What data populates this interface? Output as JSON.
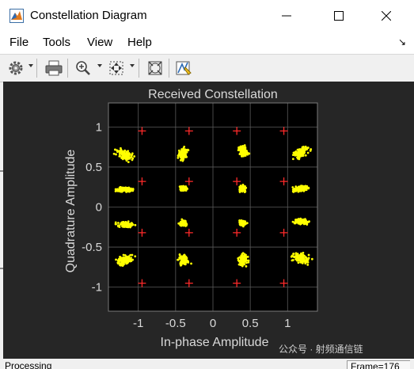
{
  "window": {
    "title": "Constellation Diagram",
    "controls": {
      "minimize": "minimize",
      "maximize": "maximize",
      "close": "close"
    }
  },
  "menu": {
    "items": [
      "File",
      "Tools",
      "View",
      "Help"
    ],
    "dock_glyph": "↘"
  },
  "toolbar": {
    "icons": [
      "gear-icon",
      "print-icon",
      "zoom-in-icon",
      "pan-fit-icon",
      "autoscale-icon",
      "highlight-signal-icon"
    ]
  },
  "status": {
    "left": "Processing",
    "frame": "Frame=176"
  },
  "watermark": "公众号 · 射频通信链",
  "colors": {
    "figure_bg": "#262626",
    "plot_bg": "#000000",
    "grid": "#5a5a5a",
    "text": "#d9d9d9",
    "received": "#ffff00",
    "reference": "#ff2a2a"
  },
  "chart_data": {
    "type": "scatter",
    "title": "Received Constellation",
    "xlabel": "In-phase Amplitude",
    "ylabel": "Quadrature Amplitude",
    "xlim": [
      -1.4,
      1.4
    ],
    "ylim": [
      -1.3,
      1.3
    ],
    "xticks": [
      -1,
      -0.5,
      0,
      0.5,
      1
    ],
    "yticks": [
      -1,
      -0.5,
      0,
      0.5,
      1
    ],
    "xtick_labels": [
      "-1",
      "-0.5",
      "0",
      "0.5",
      "1"
    ],
    "ytick_labels": [
      "-1",
      "-0.5",
      "0",
      "0.5",
      "1"
    ],
    "grid": true,
    "reference_points": [
      [
        -0.95,
        0.95
      ],
      [
        -0.32,
        0.95
      ],
      [
        0.32,
        0.95
      ],
      [
        0.95,
        0.95
      ],
      [
        -0.95,
        0.32
      ],
      [
        -0.32,
        0.32
      ],
      [
        0.32,
        0.32
      ],
      [
        0.95,
        0.32
      ],
      [
        -0.95,
        -0.32
      ],
      [
        -0.32,
        -0.32
      ],
      [
        0.32,
        -0.32
      ],
      [
        0.95,
        -0.32
      ],
      [
        -0.95,
        -0.95
      ],
      [
        -0.32,
        -0.95
      ],
      [
        0.32,
        -0.95
      ],
      [
        0.95,
        -0.95
      ]
    ],
    "received_clusters": [
      {
        "center": [
          -1.18,
          0.65
        ],
        "spread": [
          0.1,
          0.05
        ],
        "tilt": -0.3
      },
      {
        "center": [
          -0.4,
          0.66
        ],
        "spread": [
          0.05,
          0.06
        ],
        "tilt": -0.6
      },
      {
        "center": [
          0.4,
          0.69
        ],
        "spread": [
          0.05,
          0.06
        ],
        "tilt": 0.6
      },
      {
        "center": [
          1.18,
          0.68
        ],
        "spread": [
          0.1,
          0.05
        ],
        "tilt": 0.4
      },
      {
        "center": [
          -1.18,
          0.22
        ],
        "spread": [
          0.09,
          0.03
        ],
        "tilt": 0
      },
      {
        "center": [
          -0.4,
          0.23
        ],
        "spread": [
          0.04,
          0.03
        ],
        "tilt": 0
      },
      {
        "center": [
          0.4,
          0.23
        ],
        "spread": [
          0.04,
          0.03
        ],
        "tilt": 0
      },
      {
        "center": [
          1.18,
          0.23
        ],
        "spread": [
          0.09,
          0.03
        ],
        "tilt": 0.1
      },
      {
        "center": [
          -1.18,
          -0.22
        ],
        "spread": [
          0.09,
          0.03
        ],
        "tilt": 0
      },
      {
        "center": [
          -0.4,
          -0.2
        ],
        "spread": [
          0.04,
          0.03
        ],
        "tilt": 0
      },
      {
        "center": [
          0.4,
          -0.2
        ],
        "spread": [
          0.04,
          0.03
        ],
        "tilt": 0
      },
      {
        "center": [
          1.18,
          -0.18
        ],
        "spread": [
          0.09,
          0.03
        ],
        "tilt": -0.1
      },
      {
        "center": [
          -1.18,
          -0.66
        ],
        "spread": [
          0.1,
          0.05
        ],
        "tilt": 0.3
      },
      {
        "center": [
          -0.4,
          -0.66
        ],
        "spread": [
          0.05,
          0.06
        ],
        "tilt": 0.6
      },
      {
        "center": [
          0.4,
          -0.66
        ],
        "spread": [
          0.05,
          0.06
        ],
        "tilt": -0.6
      },
      {
        "center": [
          1.18,
          -0.64
        ],
        "spread": [
          0.1,
          0.05
        ],
        "tilt": -0.3
      }
    ]
  }
}
